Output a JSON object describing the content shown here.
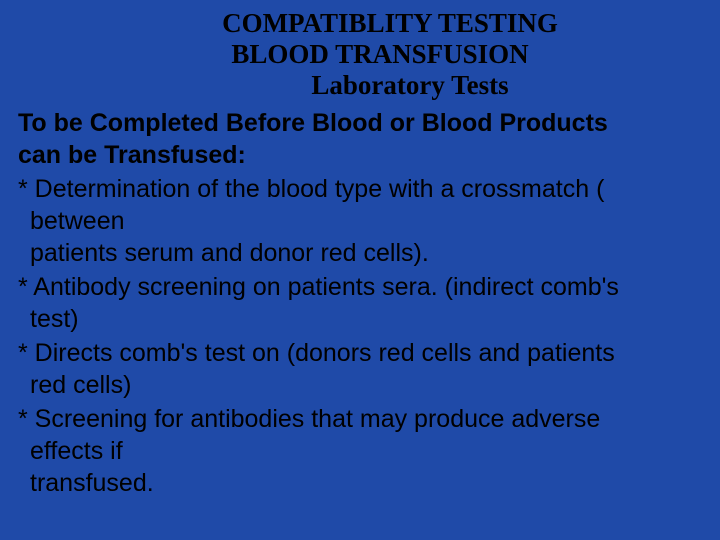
{
  "colors": {
    "background": "#1f4aa8",
    "text": "#000000"
  },
  "typography": {
    "title_font": "Times New Roman",
    "title_fontsize": 27,
    "title_weight": "bold",
    "body_font": "Arial",
    "body_fontsize": 25,
    "intro_weight": "bold"
  },
  "titles": {
    "line1": "COMPATIBLITY TESTING",
    "line2": "BLOOD TRANSFUSION",
    "line3": "Laboratory Tests"
  },
  "intro": {
    "line1": "To be Completed Before Blood or Blood Products",
    "line2": "can be Transfused:"
  },
  "bullets": [
    {
      "l1": "* Determination of the blood type with a crossmatch (",
      "l2": "between",
      "l3": "patients serum and donor red cells)."
    },
    {
      "l1": "* Antibody screening on patients sera. (indirect comb's",
      "l2": "test)"
    },
    {
      "l1": "* Directs comb's test on (donors red cells and patients",
      "l2": "red cells)"
    },
    {
      "l1": "* Screening for antibodies that may produce adverse",
      "l2": "effects if",
      "l3": "transfused."
    }
  ]
}
